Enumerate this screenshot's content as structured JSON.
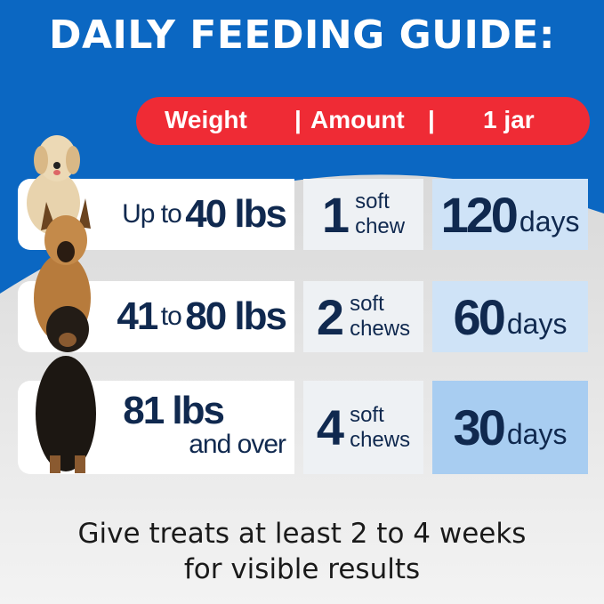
{
  "title": "DAILY FEEDING GUIDE:",
  "header": {
    "col1": "Weight",
    "sep1": "|",
    "col2": "Amount",
    "sep2": "|",
    "col3": "1 jar"
  },
  "rows": [
    {
      "weight_prefix": "Up to",
      "weight_value": "40 lbs",
      "amount": "1",
      "amount_unit_1": "soft",
      "amount_unit_2": "chew",
      "duration": "120",
      "duration_unit": "days"
    },
    {
      "weight_prefix": "41",
      "weight_mid": "to",
      "weight_value": "80 lbs",
      "amount": "2",
      "amount_unit_1": "soft",
      "amount_unit_2": "chews",
      "duration": "60",
      "duration_unit": "days"
    },
    {
      "weight_value": "81 lbs",
      "weight_suffix": "and over",
      "amount": "4",
      "amount_unit_1": "soft",
      "amount_unit_2": "chews",
      "duration": "30",
      "duration_unit": "days"
    }
  ],
  "footer": {
    "line1": "Give treats at least 2 to 4 weeks",
    "line2": "for visible results"
  },
  "colors": {
    "background_blue": "#0b67c2",
    "header_red": "#ef2b35",
    "text_navy": "#10294f"
  }
}
